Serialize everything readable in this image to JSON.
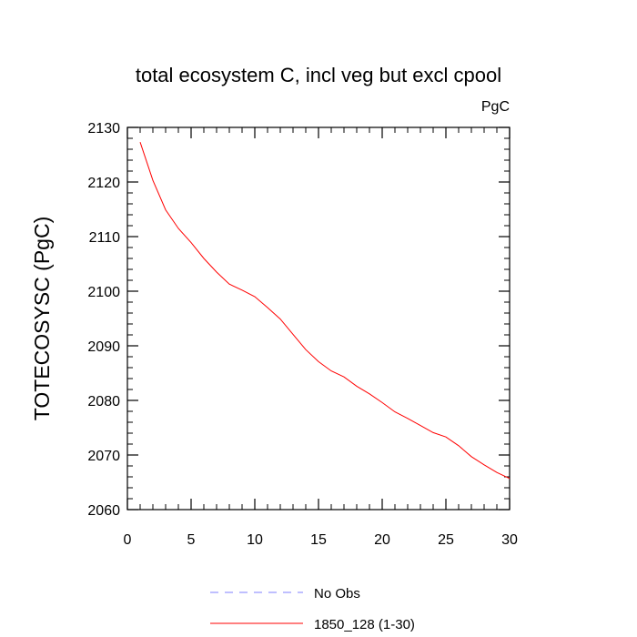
{
  "chart_data": {
    "type": "line",
    "title": "total ecosystem C, incl veg but excl cpool",
    "units": "PgC",
    "ylabel": "TOTECOSYSC  (PgC)",
    "xlabel": "",
    "xlim": [
      0,
      30
    ],
    "ylim": [
      2060,
      2130
    ],
    "xticks": [
      0,
      5,
      10,
      15,
      20,
      25,
      30
    ],
    "yticks": [
      2060,
      2070,
      2080,
      2090,
      2100,
      2110,
      2120,
      2130
    ],
    "grid": false,
    "legend_position": "bottom",
    "legend": [
      {
        "label": "No Obs",
        "color": "#7f7fff",
        "style": "dashed"
      },
      {
        "label": "1850_128 (1-30)",
        "color": "#ff0000",
        "style": "solid"
      }
    ],
    "series": [
      {
        "name": "1850_128 (1-30)",
        "color": "#ff0000",
        "x": [
          1,
          2,
          3,
          4,
          5,
          6,
          7,
          8,
          9,
          10,
          11,
          12,
          13,
          14,
          15,
          16,
          17,
          18,
          19,
          20,
          21,
          22,
          23,
          24,
          25,
          26,
          27,
          28,
          29,
          30
        ],
        "values": [
          2127.3,
          2120.3,
          2114.9,
          2111.5,
          2108.9,
          2106.0,
          2103.5,
          2101.3,
          2100.2,
          2099.0,
          2097.0,
          2094.9,
          2092.1,
          2089.3,
          2087.1,
          2085.4,
          2084.3,
          2082.6,
          2081.2,
          2079.6,
          2077.9,
          2076.7,
          2075.4,
          2074.1,
          2073.3,
          2071.7,
          2069.7,
          2068.2,
          2066.8,
          2065.7
        ]
      }
    ]
  }
}
